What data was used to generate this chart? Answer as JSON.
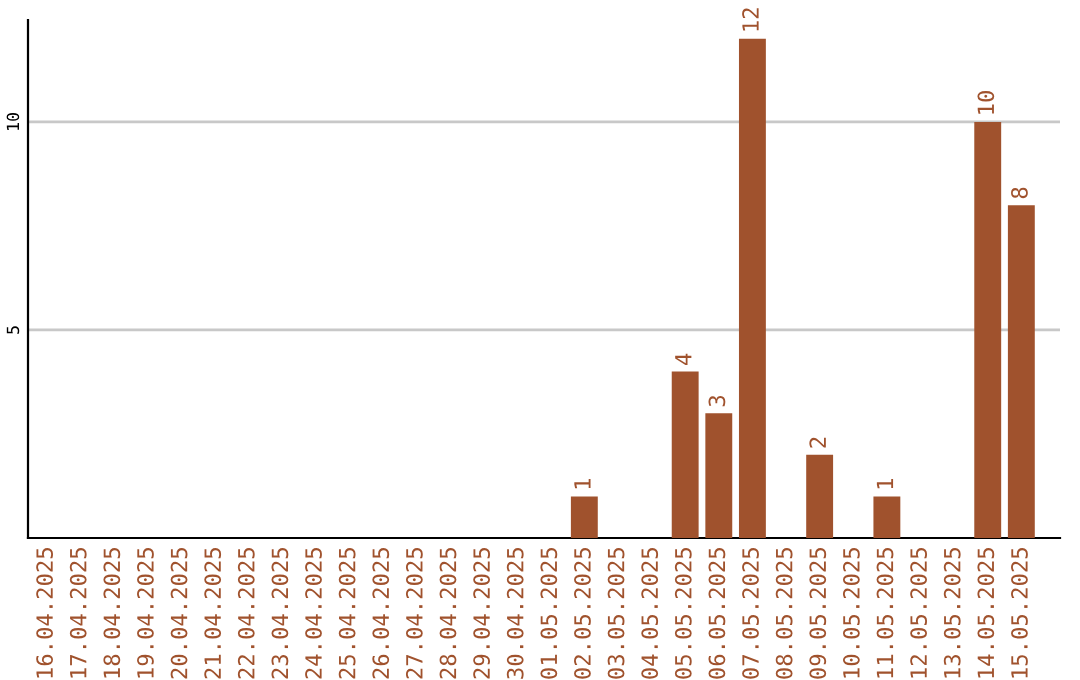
{
  "chart_data": {
    "type": "bar",
    "categories": [
      "16.04.2025",
      "17.04.2025",
      "18.04.2025",
      "19.04.2025",
      "20.04.2025",
      "21.04.2025",
      "22.04.2025",
      "23.04.2025",
      "24.04.2025",
      "25.04.2025",
      "26.04.2025",
      "27.04.2025",
      "28.04.2025",
      "29.04.2025",
      "30.04.2025",
      "01.05.2025",
      "02.05.2025",
      "03.05.2025",
      "04.05.2025",
      "05.05.2025",
      "06.05.2025",
      "07.05.2025",
      "08.05.2025",
      "09.05.2025",
      "10.05.2025",
      "11.05.2025",
      "12.05.2025",
      "13.05.2025",
      "14.05.2025",
      "15.05.2025"
    ],
    "values": [
      0,
      0,
      0,
      0,
      0,
      0,
      0,
      0,
      0,
      0,
      0,
      0,
      0,
      0,
      0,
      0,
      1,
      0,
      0,
      4,
      3,
      12,
      0,
      2,
      0,
      1,
      0,
      0,
      10,
      8
    ],
    "value_labels": [
      null,
      null,
      null,
      null,
      null,
      null,
      null,
      null,
      null,
      null,
      null,
      null,
      null,
      null,
      null,
      null,
      "1",
      null,
      null,
      "4",
      "3",
      "12",
      null,
      "2",
      null,
      "1",
      null,
      null,
      "10",
      "8"
    ],
    "color": "#a0522d",
    "ylim": [
      0,
      12.45
    ],
    "yticks": [
      5,
      10
    ],
    "grid": "y"
  }
}
